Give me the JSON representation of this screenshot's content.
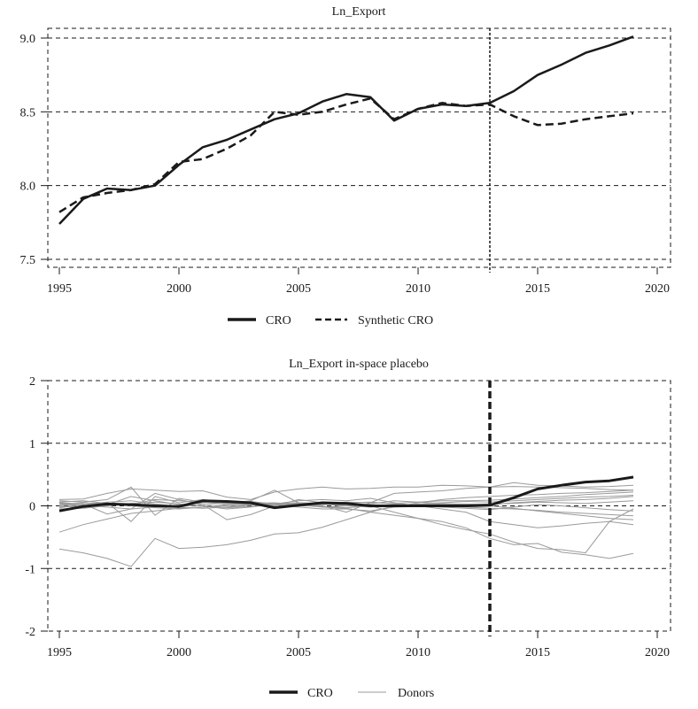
{
  "chart_data": [
    {
      "type": "line",
      "title": "Ln_Export",
      "xlabel": "",
      "ylabel": "",
      "x": [
        1995,
        1996,
        1997,
        1998,
        1999,
        2000,
        2001,
        2002,
        2003,
        2004,
        2005,
        2006,
        2007,
        2008,
        2009,
        2010,
        2011,
        2012,
        2013,
        2014,
        2015,
        2016,
        2017,
        2018,
        2019
      ],
      "xlim": [
        1995,
        2020
      ],
      "ylim": [
        7.5,
        9.0
      ],
      "xticks": [
        "1995",
        "2000",
        "2005",
        "2010",
        "2015",
        "2020"
      ],
      "yticks": [
        "7.5",
        "8.0",
        "8.5",
        "9.0"
      ],
      "grid": true,
      "treatment_year": 2013,
      "legend_position": "bottom",
      "series": [
        {
          "name": "CRO",
          "style": "solid",
          "color": "#1a1a1a",
          "values": [
            7.74,
            7.91,
            7.98,
            7.97,
            8.0,
            8.14,
            8.26,
            8.31,
            8.38,
            8.45,
            8.49,
            8.57,
            8.62,
            8.6,
            8.44,
            8.52,
            8.55,
            8.54,
            8.56,
            8.64,
            8.75,
            8.82,
            8.9,
            8.95,
            9.01
          ]
        },
        {
          "name": "Synthetic CRO",
          "style": "dashed",
          "color": "#1a1a1a",
          "values": [
            7.82,
            7.92,
            7.95,
            7.97,
            8.01,
            8.16,
            8.18,
            8.25,
            8.34,
            8.5,
            8.48,
            8.5,
            8.55,
            8.59,
            8.45,
            8.52,
            8.56,
            8.54,
            8.55,
            8.47,
            8.41,
            8.42,
            8.45,
            8.47,
            8.49
          ]
        }
      ]
    },
    {
      "type": "line",
      "title": "Ln_Export in-space placebo",
      "xlabel": "",
      "ylabel": "",
      "x": [
        1995,
        1996,
        1997,
        1998,
        1999,
        2000,
        2001,
        2002,
        2003,
        2004,
        2005,
        2006,
        2007,
        2008,
        2009,
        2010,
        2011,
        2012,
        2013,
        2014,
        2015,
        2016,
        2017,
        2018,
        2019
      ],
      "xlim": [
        1995,
        2020
      ],
      "ylim": [
        -2,
        2
      ],
      "xticks": [
        "1995",
        "2000",
        "2005",
        "2010",
        "2015",
        "2020"
      ],
      "yticks": [
        "-2",
        "-1",
        "0",
        "1",
        "2"
      ],
      "grid": true,
      "treatment_year": 2013,
      "legend_position": "bottom",
      "series": [
        {
          "name": "CRO",
          "style": "solid-thick",
          "color": "#1a1a1a",
          "values": [
            -0.08,
            -0.01,
            0.03,
            0.02,
            0.0,
            -0.01,
            0.08,
            0.07,
            0.05,
            -0.03,
            0.01,
            0.05,
            0.04,
            0.0,
            0.0,
            0.0,
            0.0,
            0.0,
            0.01,
            0.13,
            0.27,
            0.33,
            0.38,
            0.4,
            0.46
          ]
        },
        {
          "name": "Donors",
          "style": "solid-thin",
          "color": "#9a9a9a",
          "lines": [
            [
              -0.69,
              -0.75,
              -0.84,
              -0.97,
              -0.52,
              -0.68,
              -0.66,
              -0.62,
              -0.55,
              -0.45,
              -0.43,
              -0.34,
              -0.22,
              -0.1,
              0.0,
              0.02,
              0.03,
              0.03,
              0.02,
              0.05,
              0.07,
              0.09,
              0.1,
              0.12,
              0.15
            ],
            [
              -0.42,
              -0.3,
              -0.21,
              -0.12,
              -0.08,
              -0.04,
              -0.02,
              0.0,
              0.02,
              0.03,
              0.05,
              0.04,
              0.06,
              0.05,
              0.04,
              0.06,
              0.08,
              0.08,
              0.09,
              0.11,
              0.13,
              0.15,
              0.18,
              0.2,
              0.22
            ],
            [
              0.1,
              0.11,
              0.2,
              0.27,
              0.25,
              0.23,
              0.24,
              0.14,
              0.1,
              0.22,
              0.27,
              0.3,
              0.27,
              0.28,
              0.3,
              0.3,
              0.33,
              0.32,
              0.3,
              0.37,
              0.33,
              0.32,
              0.3,
              0.31,
              0.33
            ],
            [
              0.08,
              0.06,
              0.1,
              0.3,
              -0.15,
              0.12,
              0.06,
              0.04,
              0.08,
              0.25,
              0.05,
              0.0,
              -0.1,
              0.05,
              0.2,
              0.22,
              0.24,
              0.28,
              0.3,
              0.31,
              0.3,
              0.29,
              0.28,
              0.26,
              0.25
            ],
            [
              0.05,
              0.03,
              -0.13,
              -0.05,
              0.2,
              0.1,
              0.02,
              -0.22,
              -0.14,
              0.0,
              0.05,
              -0.02,
              -0.04,
              -0.1,
              -0.15,
              -0.2,
              -0.25,
              -0.35,
              -0.52,
              -0.62,
              -0.6,
              -0.74,
              -0.78,
              -0.84,
              -0.76
            ],
            [
              0.02,
              0.0,
              0.05,
              -0.25,
              0.15,
              0.05,
              0.1,
              0.05,
              0.02,
              0.0,
              0.1,
              0.05,
              0.03,
              0.0,
              -0.1,
              -0.2,
              -0.3,
              -0.38,
              -0.45,
              -0.58,
              -0.68,
              -0.7,
              -0.75,
              -0.25,
              -0.05
            ],
            [
              0.0,
              -0.02,
              0.02,
              0.15,
              0.08,
              0.02,
              0.0,
              -0.05,
              -0.02,
              0.03,
              0.08,
              0.1,
              0.08,
              0.12,
              0.05,
              0.0,
              -0.05,
              -0.1,
              -0.25,
              -0.3,
              -0.35,
              -0.32,
              -0.28,
              -0.25,
              -0.3
            ],
            [
              0.06,
              0.08,
              0.04,
              0.02,
              0.1,
              0.08,
              0.06,
              0.03,
              0.04,
              0.02,
              -0.02,
              -0.05,
              -0.05,
              -0.08,
              -0.02,
              0.05,
              0.1,
              0.13,
              0.15,
              0.17,
              0.18,
              0.2,
              0.21,
              0.23,
              0.25
            ],
            [
              -0.03,
              0.02,
              0.06,
              0.08,
              0.03,
              -0.01,
              0.02,
              0.05,
              0.07,
              0.03,
              0.01,
              -0.02,
              0.0,
              0.03,
              0.08,
              0.06,
              0.04,
              0.02,
              0.0,
              -0.04,
              -0.08,
              -0.12,
              -0.16,
              -0.2,
              -0.22
            ],
            [
              0.04,
              0.01,
              -0.02,
              -0.05,
              -0.02,
              0.01,
              0.05,
              0.07,
              0.06,
              0.03,
              0.0,
              0.02,
              0.05,
              0.06,
              0.03,
              0.01,
              -0.01,
              -0.02,
              -0.04,
              -0.05,
              -0.07,
              -0.1,
              -0.12,
              -0.14,
              -0.16
            ],
            [
              -0.05,
              -0.04,
              0.0,
              0.04,
              0.06,
              0.03,
              0.0,
              -0.03,
              -0.01,
              0.02,
              0.04,
              0.03,
              0.0,
              -0.02,
              0.0,
              0.03,
              0.05,
              0.07,
              0.06,
              0.08,
              0.1,
              0.12,
              0.14,
              0.15,
              0.17
            ],
            [
              0.02,
              0.05,
              0.03,
              0.0,
              -0.03,
              -0.05,
              -0.02,
              0.02,
              0.04,
              0.05,
              0.02,
              -0.01,
              -0.03,
              0.0,
              0.02,
              0.0,
              -0.02,
              -0.04,
              -0.06,
              -0.02,
              0.02,
              0.0,
              -0.03,
              -0.06,
              -0.08
            ],
            [
              -0.01,
              -0.02,
              0.01,
              0.03,
              0.0,
              -0.02,
              -0.04,
              -0.02,
              0.01,
              0.03,
              0.05,
              0.03,
              0.01,
              0.0,
              -0.02,
              -0.01,
              0.01,
              0.02,
              0.03,
              0.04,
              0.06,
              0.05,
              0.04,
              0.06,
              0.08
            ]
          ]
        }
      ]
    }
  ],
  "legends": {
    "top": [
      {
        "label": "CRO",
        "style": "solid"
      },
      {
        "label": "Synthetic CRO",
        "style": "dashed"
      }
    ],
    "bottom": [
      {
        "label": "CRO",
        "style": "solid-thick"
      },
      {
        "label": "Donors",
        "style": "solid-thin"
      }
    ]
  }
}
